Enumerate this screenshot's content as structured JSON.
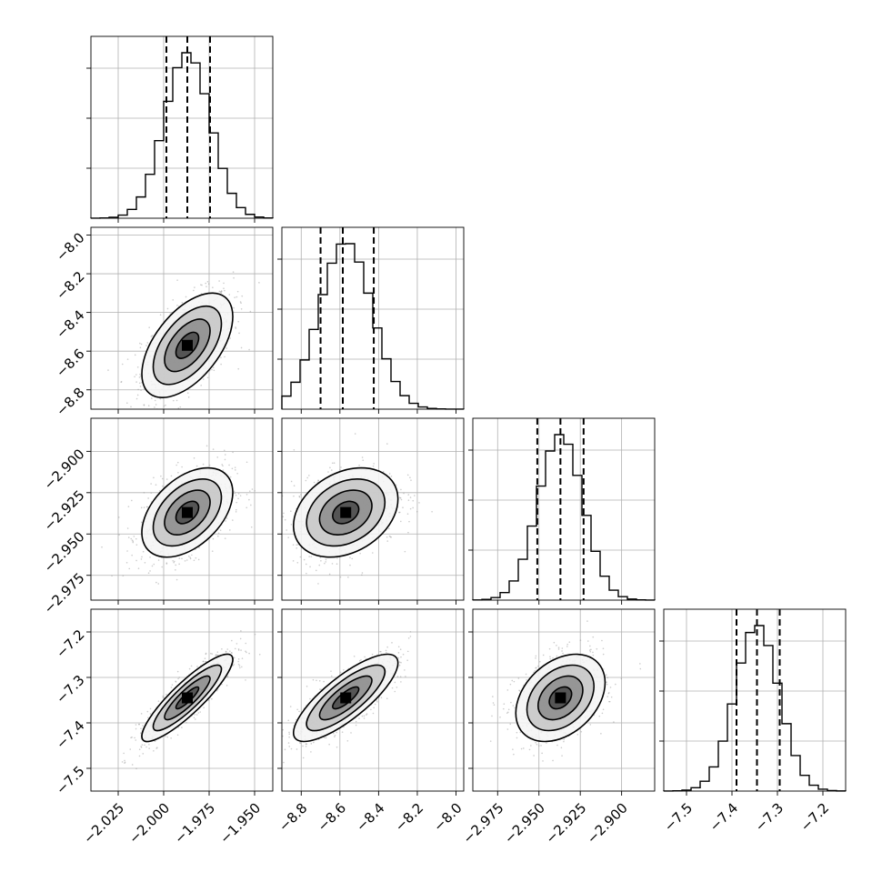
{
  "chart_data": {
    "type": "corner",
    "grid": true,
    "colors": {
      "line": "#000000",
      "grid": "#b0b0b0",
      "scatter": "#9a9a9a"
    },
    "parameters": [
      {
        "index": 0,
        "mean": -1.987,
        "sd": 0.0125,
        "range": [
          -2.04,
          -1.94
        ],
        "ticks": [
          -2.025,
          -2.0,
          -1.975,
          -1.95
        ],
        "tick_labels": [
          "−2.025",
          "−2.000",
          "−1.975",
          "−1.950"
        ],
        "quantiles": [
          -1.9985,
          -1.987,
          -1.9745
        ]
      },
      {
        "index": 1,
        "mean": -8.57,
        "sd": 0.135,
        "range": [
          -8.9,
          -7.96
        ],
        "ticks": [
          -8.8,
          -8.6,
          -8.4,
          -8.2,
          -8.0
        ],
        "tick_labels": [
          "−8.8",
          "−8.6",
          "−8.4",
          "−8.2",
          "−8.0"
        ],
        "quantiles": [
          -8.7,
          -8.585,
          -8.425
        ]
      },
      {
        "index": 2,
        "mean": -2.937,
        "sd": 0.0135,
        "range": [
          -2.99,
          -2.88
        ],
        "ticks": [
          -2.975,
          -2.95,
          -2.925,
          -2.9
        ],
        "tick_labels": [
          "−2.975",
          "−2.950",
          "−2.925",
          "−2.900"
        ],
        "quantiles": [
          -2.951,
          -2.937,
          -2.923
        ]
      },
      {
        "index": 3,
        "mean": -7.345,
        "sd": 0.048,
        "range": [
          -7.55,
          -7.15
        ],
        "ticks": [
          -7.5,
          -7.4,
          -7.3,
          -7.2
        ],
        "tick_labels": [
          "−7.5",
          "−7.4",
          "−7.3",
          "−7.2"
        ],
        "quantiles": [
          -7.39,
          -7.345,
          -7.295
        ]
      }
    ],
    "y_tick_labels": {
      "1": [
        "−8.0",
        "−8.2",
        "−8.4",
        "−8.6",
        "−8.8"
      ],
      "2": [
        "−2.900",
        "−2.925",
        "−2.950",
        "−2.975"
      ],
      "3": [
        "−7.2",
        "−7.3",
        "−7.4",
        "−7.5"
      ]
    },
    "correlations": [
      {
        "row": 1,
        "col": 0,
        "rho": 0.55
      },
      {
        "row": 2,
        "col": 0,
        "rho": 0.45
      },
      {
        "row": 2,
        "col": 1,
        "rho": 0.3
      },
      {
        "row": 3,
        "col": 0,
        "rho": 0.88
      },
      {
        "row": 3,
        "col": 1,
        "rho": 0.8
      },
      {
        "row": 3,
        "col": 2,
        "rho": 0.35
      }
    ],
    "contour_levels_sigma": [
      0.5,
      1.0,
      1.5,
      2.0
    ]
  }
}
